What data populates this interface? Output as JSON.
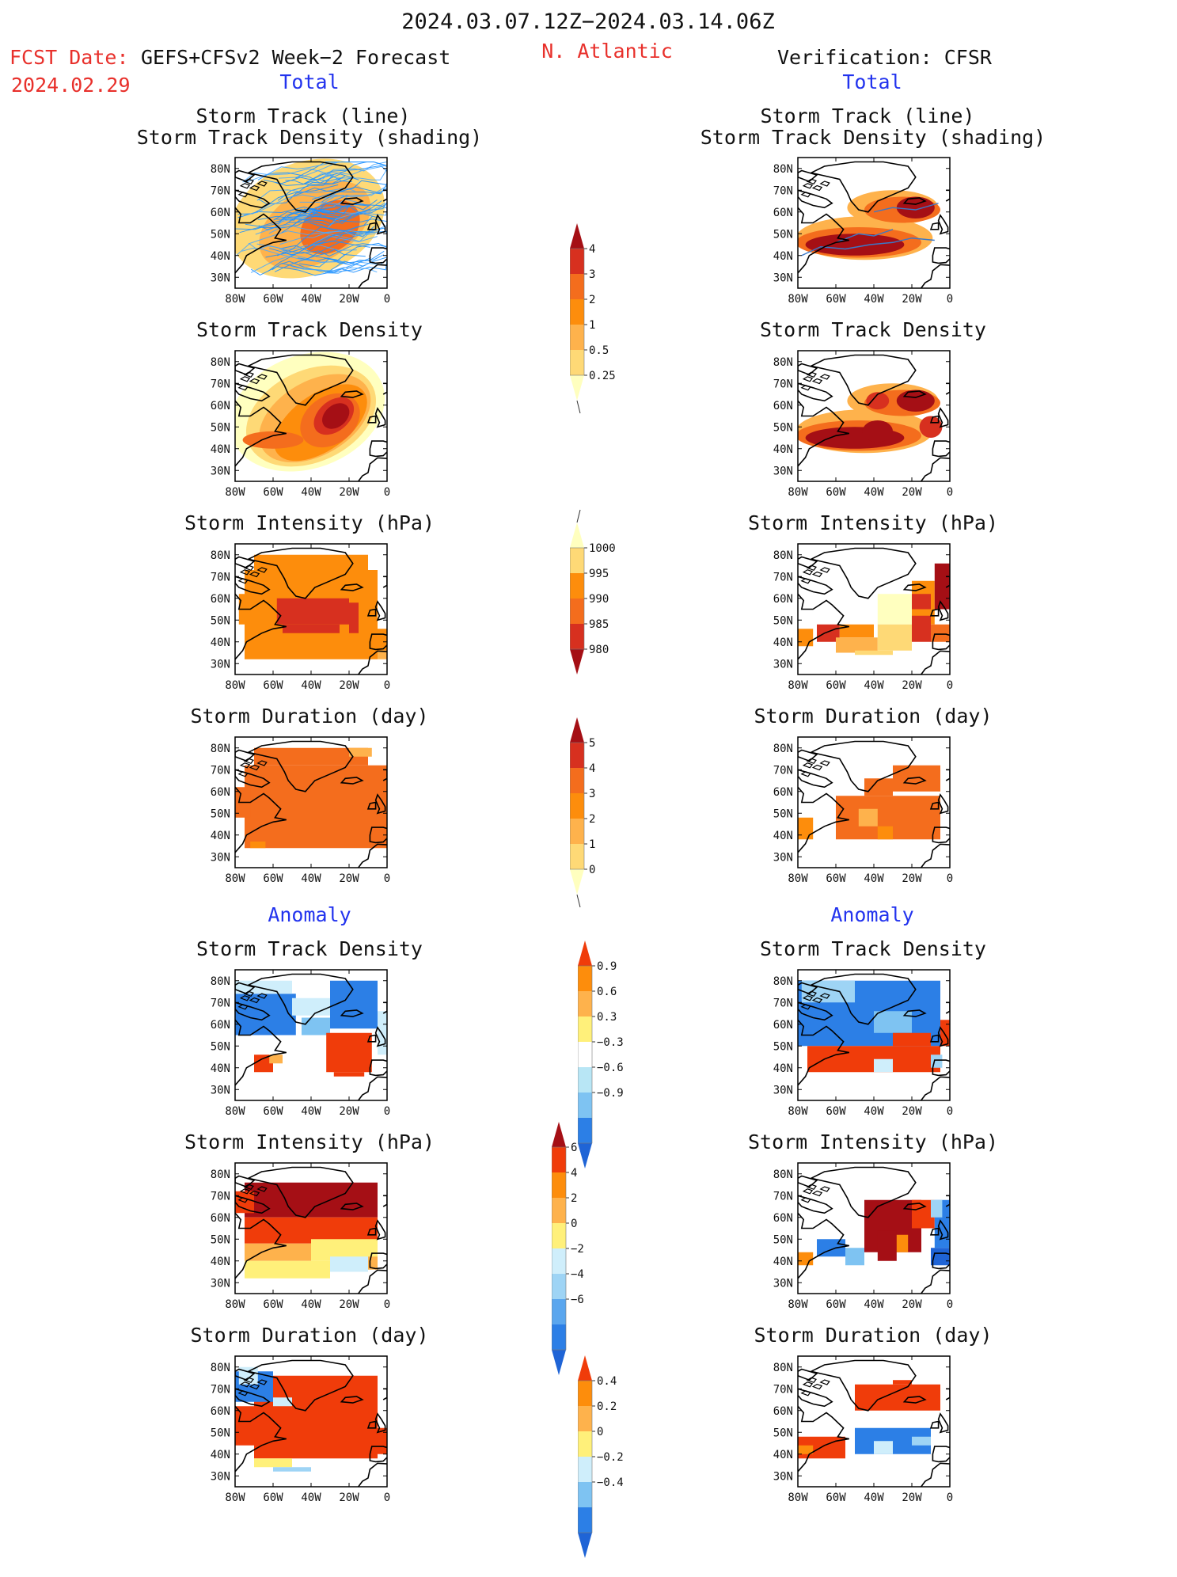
{
  "header": {
    "date_range": "2024.03.07.12Z−2024.03.14.06Z",
    "fcst_label": "FCST Date:",
    "fcst_model": "GEFS+CFSv2 Week−2 Forecast",
    "fcst_date": "2024.02.29",
    "region": "N. Atlantic",
    "verification": "Verification: CFSR"
  },
  "sections": {
    "total_left": "Total",
    "total_right": "Total",
    "anomaly_left": "Anomaly",
    "anomaly_right": "Anomaly"
  },
  "panel_titles": {
    "track_line": "Storm Track (line)",
    "track_shading": "Storm Track Density (shading)",
    "density": "Storm Track Density",
    "intensity": "Storm Intensity (hPa)",
    "duration": "Storm Duration (day)"
  },
  "axes": {
    "lat_ticks": [
      "80N",
      "70N",
      "60N",
      "50N",
      "40N",
      "30N"
    ],
    "lon_ticks": [
      "80W",
      "60W",
      "40W",
      "20W",
      "0"
    ]
  },
  "colorbars": {
    "density_total": {
      "labels": [
        "4",
        "3",
        "2",
        "1",
        "0.5",
        "0.25"
      ],
      "colors": [
        "#a50f15",
        "#d7301f",
        "#f46d1d",
        "#fd8d0c",
        "#feb24c",
        "#fed976",
        "#ffffbf"
      ]
    },
    "intensity_total": {
      "labels": [
        "1000",
        "995",
        "990",
        "985",
        "980"
      ],
      "colors": [
        "#ffffbf",
        "#fed976",
        "#fd8d0c",
        "#f46d1d",
        "#d7301f",
        "#a50f15"
      ]
    },
    "duration_total": {
      "labels": [
        "5",
        "4",
        "3",
        "2",
        "1",
        "0"
      ],
      "colors": [
        "#a50f15",
        "#d7301f",
        "#f46d1d",
        "#fd8d0c",
        "#feb24c",
        "#fed976",
        "#ffffbf"
      ]
    },
    "density_anom": {
      "labels": [
        "0.9",
        "0.6",
        "0.3",
        "−0.3",
        "−0.6",
        "−0.9"
      ],
      "colors": [
        "#f03c0a",
        "#fd8d0c",
        "#feb24c",
        "#fff07a",
        "#ffffff",
        "#b8e6f5",
        "#7ec3f2",
        "#2c7fe6",
        "#1f64d6"
      ]
    },
    "intensity_anom": {
      "labels": [
        "6",
        "4",
        "2",
        "0",
        "−2",
        "−4",
        "−6"
      ],
      "colors": [
        "#a50f15",
        "#f03c0a",
        "#fd8d0c",
        "#feb24c",
        "#fff07a",
        "#cfeefb",
        "#9ed4f5",
        "#5aa6ee",
        "#2c7fe6",
        "#1f64d6"
      ]
    },
    "duration_anom": {
      "labels": [
        "0.4",
        "0.2",
        "0",
        "−0.2",
        "−0.4"
      ],
      "colors": [
        "#f03c0a",
        "#fd8d0c",
        "#feb24c",
        "#fff07a",
        "#cfeefb",
        "#7ec3f2",
        "#2c7fe6",
        "#1f64d6"
      ]
    }
  }
}
